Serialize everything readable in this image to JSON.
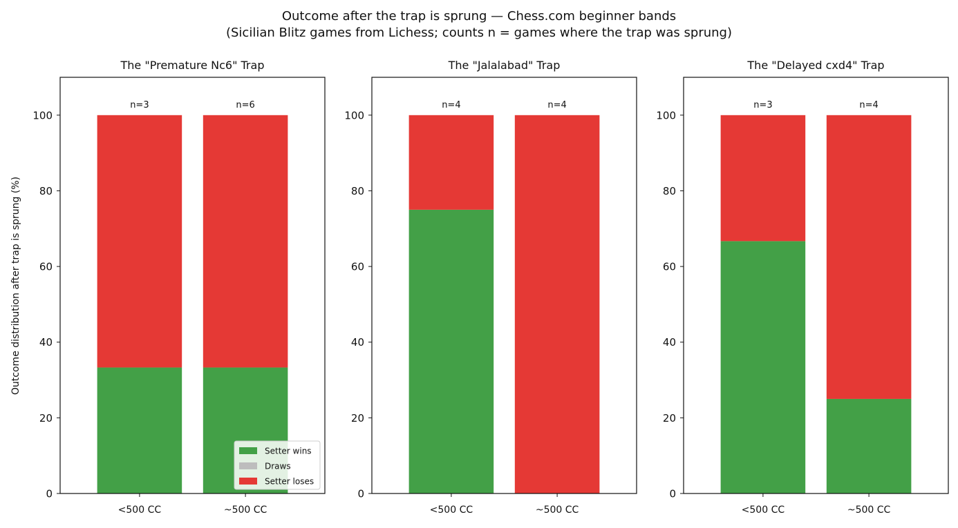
{
  "figure": {
    "title_line1": "Outcome after the trap is sprung — Chess.com beginner bands",
    "title_line2": "(Sicilian Blitz games from Lichess; counts n = games where the trap was sprung)",
    "ylabel": "Outcome distribution after trap is sprung (%)",
    "legend": {
      "placement": "lower-right",
      "panel": 0,
      "entries": [
        "Setter wins",
        "Draws",
        "Setter loses"
      ]
    },
    "colors": {
      "Setter wins": "#43a047",
      "Draws": "#bdbdbd",
      "Setter loses": "#e53935"
    }
  },
  "chart_data": [
    {
      "type": "bar",
      "stacked": true,
      "title": "The \"Premature Nc6\" Trap",
      "categories": [
        "<500 CC",
        "~500 CC"
      ],
      "series": [
        {
          "name": "Setter wins",
          "values": [
            33.3,
            33.3
          ]
        },
        {
          "name": "Draws",
          "values": [
            0,
            0
          ]
        },
        {
          "name": "Setter loses",
          "values": [
            66.7,
            66.7
          ]
        }
      ],
      "counts": [
        "n=3",
        "n=6"
      ],
      "ylim": [
        0,
        110
      ],
      "yticks": [
        0,
        20,
        40,
        60,
        80,
        100
      ],
      "grid": false
    },
    {
      "type": "bar",
      "stacked": true,
      "title": "The \"Jalalabad\" Trap",
      "categories": [
        "<500 CC",
        "~500 CC"
      ],
      "series": [
        {
          "name": "Setter wins",
          "values": [
            75,
            0
          ]
        },
        {
          "name": "Draws",
          "values": [
            0,
            0
          ]
        },
        {
          "name": "Setter loses",
          "values": [
            25,
            100
          ]
        }
      ],
      "counts": [
        "n=4",
        "n=4"
      ],
      "ylim": [
        0,
        110
      ],
      "yticks": [
        0,
        20,
        40,
        60,
        80,
        100
      ],
      "grid": false
    },
    {
      "type": "bar",
      "stacked": true,
      "title": "The \"Delayed cxd4\" Trap",
      "categories": [
        "<500 CC",
        "~500 CC"
      ],
      "series": [
        {
          "name": "Setter wins",
          "values": [
            66.7,
            25
          ]
        },
        {
          "name": "Draws",
          "values": [
            0,
            0
          ]
        },
        {
          "name": "Setter loses",
          "values": [
            33.3,
            75
          ]
        }
      ],
      "counts": [
        "n=3",
        "n=4"
      ],
      "ylim": [
        0,
        110
      ],
      "yticks": [
        0,
        20,
        40,
        60,
        80,
        100
      ],
      "grid": false
    }
  ]
}
